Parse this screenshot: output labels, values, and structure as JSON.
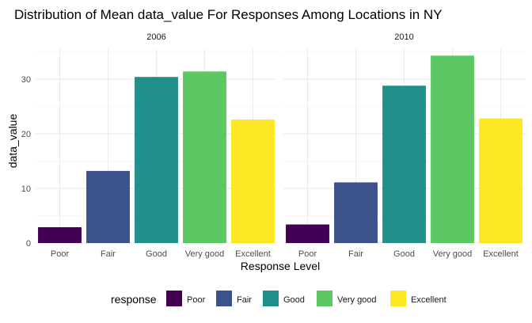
{
  "chart_data": {
    "type": "bar",
    "title": "Distribution of Mean data_value For Responses Among Locations in NY",
    "xlabel": "Response Level",
    "ylabel": "data_value",
    "ylim": [
      0,
      35.5
    ],
    "y_ticks": [
      0,
      10,
      20,
      30
    ],
    "categories": [
      "Poor",
      "Fair",
      "Good",
      "Very good",
      "Excellent"
    ],
    "colors": [
      "#440154",
      "#3b528b",
      "#21908c",
      "#5dc863",
      "#fde725"
    ],
    "grid": true,
    "legend": {
      "title": "response",
      "position": "bottom",
      "entries": [
        "Poor",
        "Fair",
        "Good",
        "Very good",
        "Excellent"
      ]
    },
    "panels": [
      {
        "label": "2006",
        "values": [
          2.9,
          13.2,
          30.4,
          31.4,
          22.6
        ]
      },
      {
        "label": "2010",
        "values": [
          3.4,
          11.1,
          28.8,
          34.3,
          22.8
        ]
      }
    ]
  }
}
